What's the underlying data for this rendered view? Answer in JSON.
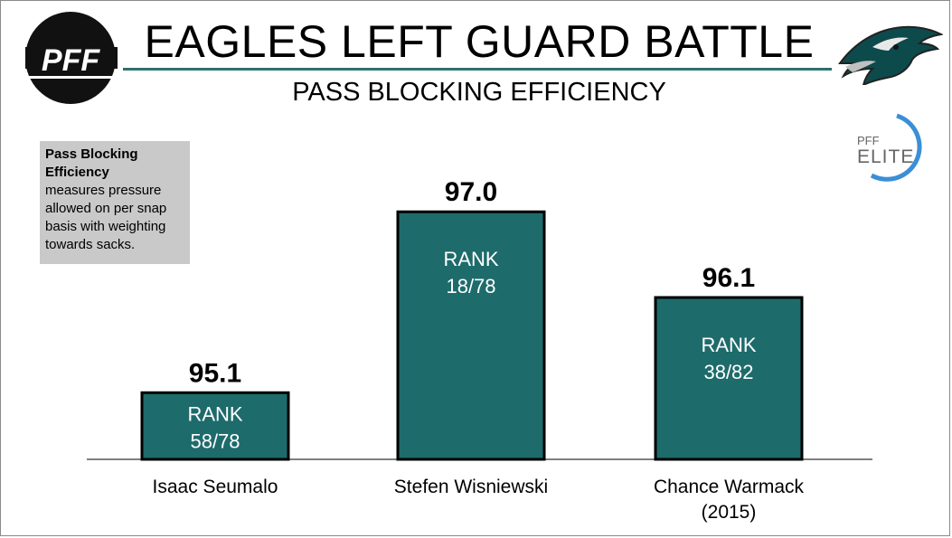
{
  "header": {
    "title": "EAGLES LEFT GUARD BATTLE",
    "subtitle": "PASS BLOCKING EFFICIENCY",
    "brand_logo": "PFF",
    "team_logo": "eagles-head-logo",
    "badge_top": "PFF",
    "badge_bottom": "ELITE"
  },
  "info_box": {
    "heading": "Pass Blocking Efficiency",
    "body": "measures pressure allowed on per snap basis with weighting towards sacks."
  },
  "colors": {
    "bar": "#1e6b6c",
    "bar_border": "#000000",
    "title_rule": "#2f6f71",
    "elite_ring": "#3a8fd6"
  },
  "chart_data": {
    "type": "bar",
    "title": "PASS BLOCKING EFFICIENCY",
    "categories": [
      "Isaac Seumalo",
      "Stefen Wisniewski",
      "Chance Warmack (2015)"
    ],
    "values": [
      95.1,
      97.0,
      96.1
    ],
    "value_labels": [
      "95.1",
      "97.0",
      "96.1"
    ],
    "rank_labels": [
      "RANK",
      "RANK",
      "RANK"
    ],
    "ranks": [
      "58/78",
      "18/78",
      "38/82"
    ],
    "xlabel": "",
    "ylabel": "",
    "ylim": [
      94.4,
      97.8
    ],
    "grid": false,
    "legend": "none"
  }
}
